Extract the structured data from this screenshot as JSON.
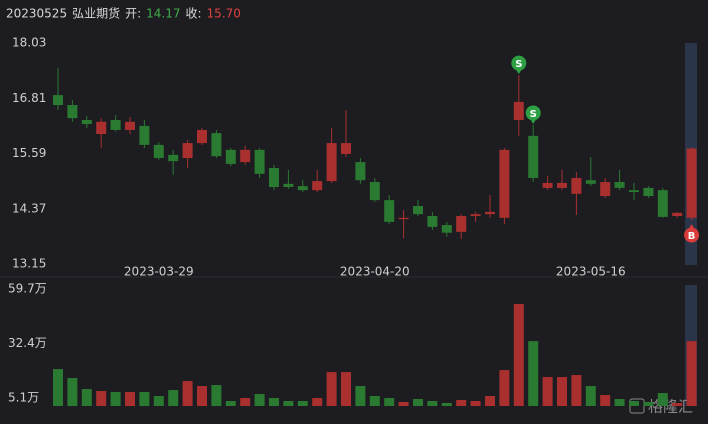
{
  "header": {
    "date": "20230525",
    "name": "弘业期货",
    "open_label": "开:",
    "open": "14.17",
    "close_label": "收:",
    "close": "15.70"
  },
  "watermark": "格隆汇",
  "chart_data": [
    {
      "type": "candlestick",
      "categories": [
        null,
        null,
        null,
        null,
        null,
        null,
        null,
        "2023-03-29",
        null,
        null,
        null,
        null,
        null,
        null,
        null,
        null,
        null,
        null,
        null,
        null,
        null,
        null,
        "2023-04-20",
        null,
        null,
        null,
        null,
        null,
        null,
        null,
        null,
        null,
        null,
        null,
        null,
        null,
        null,
        "2023-05-16",
        null,
        null,
        null,
        null,
        null,
        null,
        null
      ],
      "open": [
        16.88,
        16.66,
        16.33,
        16.02,
        16.33,
        16.11,
        16.2,
        15.78,
        15.56,
        15.49,
        15.82,
        16.04,
        15.67,
        15.4,
        15.67,
        15.27,
        14.92,
        14.87,
        14.78,
        14.98,
        15.58,
        15.4,
        14.96,
        14.56,
        14.14,
        14.43,
        14.21,
        14.01,
        13.86,
        14.21,
        14.25,
        14.17,
        16.33,
        15.98,
        14.83,
        14.83,
        14.7,
        15.0,
        14.65,
        14.96,
        14.78,
        14.83,
        14.78,
        14.21,
        14.17
      ],
      "high": [
        17.48,
        16.77,
        16.42,
        16.37,
        16.44,
        16.4,
        16.33,
        15.84,
        15.67,
        15.89,
        16.15,
        16.11,
        15.71,
        15.76,
        15.71,
        15.34,
        15.23,
        15.0,
        15.23,
        16.15,
        16.55,
        15.49,
        15.05,
        14.67,
        14.34,
        14.56,
        14.3,
        14.08,
        14.25,
        14.3,
        14.67,
        15.71,
        17.32,
        16.22,
        15.09,
        15.23,
        15.18,
        15.51,
        15.05,
        15.23,
        14.94,
        14.87,
        14.83,
        14.3,
        15.73
      ],
      "low": [
        16.55,
        16.29,
        16.15,
        15.71,
        16.07,
        16.02,
        15.71,
        15.45,
        15.12,
        15.27,
        15.78,
        15.49,
        15.31,
        15.34,
        15.05,
        14.78,
        14.81,
        14.74,
        14.74,
        14.94,
        15.51,
        14.92,
        14.52,
        14.03,
        13.72,
        14.21,
        13.9,
        13.75,
        13.7,
        14.08,
        14.17,
        14.03,
        15.98,
        14.96,
        14.78,
        14.78,
        14.23,
        14.87,
        14.61,
        14.78,
        14.56,
        14.61,
        14.17,
        14.17,
        14.12
      ],
      "close": [
        16.66,
        16.37,
        16.24,
        16.29,
        16.11,
        16.29,
        15.78,
        15.49,
        15.42,
        15.82,
        16.11,
        15.53,
        15.36,
        15.67,
        15.14,
        14.85,
        14.85,
        14.78,
        14.98,
        15.82,
        15.82,
        15.0,
        14.56,
        14.08,
        14.17,
        14.25,
        13.97,
        13.84,
        14.21,
        14.25,
        14.3,
        15.67,
        16.73,
        15.05,
        14.94,
        14.94,
        15.05,
        14.92,
        14.96,
        14.83,
        14.74,
        14.65,
        14.19,
        14.28,
        15.7
      ],
      "up_color": "#a9302f",
      "down_color": "#2a7a31",
      "ylim": [
        13.15,
        18.03
      ],
      "yticks": [
        18.03,
        16.81,
        15.59,
        14.37,
        13.15
      ],
      "signals": [
        {
          "label": "S",
          "index": 32,
          "color": "#2ea043"
        },
        {
          "label": "S",
          "index": 33,
          "color": "#2ea043"
        },
        {
          "label": "B",
          "index": 44,
          "color": "#d93a3a"
        }
      ]
    },
    {
      "type": "bar",
      "values": [
        19.6,
        15.1,
        9.6,
        8.6,
        8.1,
        8.1,
        8.1,
        6.1,
        9.1,
        13.6,
        11.1,
        11.6,
        3.6,
        5.1,
        7.1,
        5.1,
        3.6,
        3.6,
        5.1,
        18.1,
        18.1,
        11.1,
        6.1,
        5.1,
        3.1,
        4.6,
        3.6,
        2.6,
        4.1,
        3.6,
        6.1,
        19.1,
        52.2,
        33.6,
        15.6,
        15.6,
        16.6,
        11.1,
        6.6,
        4.6,
        3.6,
        3.1,
        7.6,
        2.6,
        33.6
      ],
      "ylim": [
        1.1,
        61.7
      ],
      "yticks": [
        {
          "value": 59.7,
          "label": "59.7万"
        },
        {
          "value": 32.4,
          "label": "32.4万"
        },
        {
          "value": 5.1,
          "label": "5.1万"
        }
      ]
    }
  ]
}
